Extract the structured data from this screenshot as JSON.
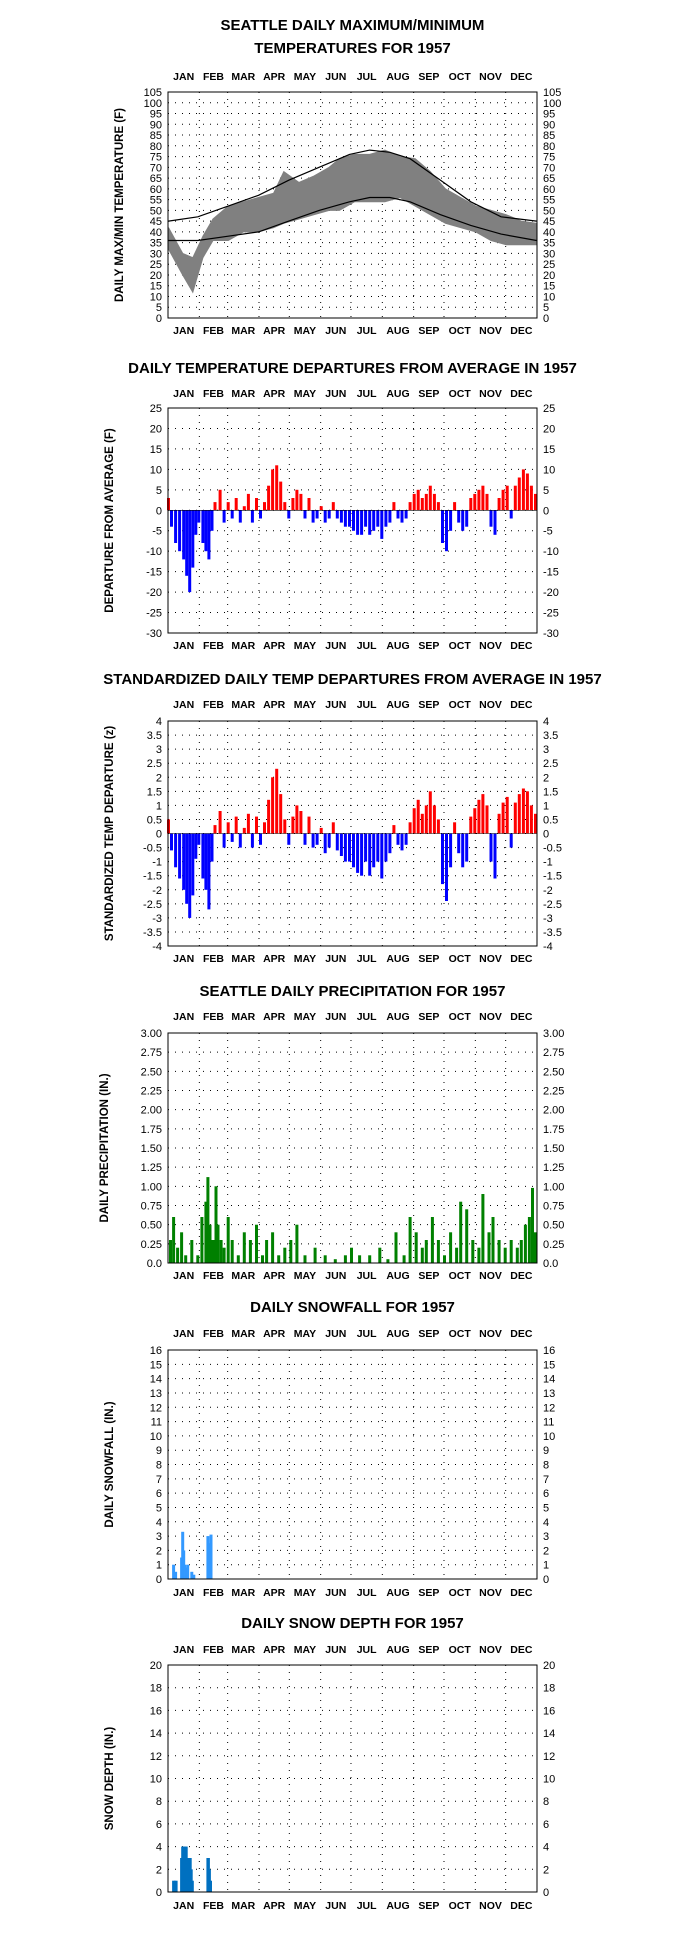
{
  "months": [
    "JAN",
    "FEB",
    "MAR",
    "APR",
    "MAY",
    "JUN",
    "JUL",
    "AUG",
    "SEP",
    "OCT",
    "NOV",
    "DEC"
  ],
  "chart_data": [
    {
      "type": "line",
      "title": [
        "SEATTLE DAILY MAXIMUM/MINIMUM",
        "TEMPERATURES FOR 1957"
      ],
      "ylabel": "DAILY MAX/MIN TEMPERATURE (F)",
      "ylim": [
        0,
        105
      ],
      "yticks": [
        0,
        5,
        10,
        15,
        20,
        25,
        30,
        35,
        40,
        45,
        50,
        55,
        60,
        65,
        70,
        75,
        80,
        85,
        90,
        95,
        100,
        105
      ],
      "series": [
        {
          "name": "",
          "kind": "daily range band (gray)",
          "color": "#808080",
          "x_day": [
            1,
            15,
            25,
            35,
            45,
            60,
            75,
            90,
            105,
            115,
            130,
            145,
            160,
            170,
            185,
            200,
            215,
            230,
            245,
            260,
            275,
            290,
            305,
            320,
            335,
            350,
            365
          ],
          "y_max": [
            42,
            30,
            28,
            38,
            46,
            52,
            54,
            56,
            58,
            68,
            63,
            66,
            70,
            74,
            76,
            76,
            78,
            75,
            74,
            68,
            60,
            56,
            52,
            50,
            48,
            45,
            44
          ],
          "y_min": [
            32,
            20,
            12,
            28,
            36,
            36,
            40,
            40,
            42,
            44,
            46,
            48,
            50,
            50,
            54,
            54,
            54,
            56,
            52,
            48,
            44,
            42,
            40,
            36,
            34,
            34,
            34
          ]
        },
        {
          "name": "",
          "kind": "normal max",
          "color": "#000000",
          "x_day": [
            1,
            30,
            60,
            90,
            120,
            150,
            180,
            200,
            220,
            240,
            270,
            300,
            330,
            365
          ],
          "y": [
            45,
            47,
            52,
            57,
            64,
            70,
            76,
            78,
            77,
            74,
            64,
            54,
            47,
            45
          ]
        },
        {
          "name": "",
          "kind": "normal min",
          "color": "#000000",
          "x_day": [
            1,
            30,
            60,
            90,
            120,
            150,
            180,
            200,
            220,
            240,
            270,
            300,
            330,
            365
          ],
          "y": [
            36,
            36,
            38,
            40,
            45,
            50,
            54,
            56,
            56,
            54,
            48,
            43,
            39,
            36
          ]
        }
      ]
    },
    {
      "type": "bar",
      "title": [
        "DAILY TEMPERATURE DEPARTURES FROM AVERAGE IN 1957"
      ],
      "ylabel": "DEPARTURE FROM AVERAGE (F)",
      "ylim": [
        -30,
        25
      ],
      "yticks": [
        25,
        20,
        15,
        10,
        5,
        0,
        -5,
        -10,
        -15,
        -20,
        -25,
        -30
      ],
      "x_day": [
        1,
        4,
        8,
        12,
        16,
        19,
        22,
        25,
        28,
        31,
        35,
        38,
        41,
        44,
        47,
        52,
        56,
        60,
        64,
        68,
        72,
        76,
        80,
        84,
        88,
        92,
        96,
        100,
        104,
        108,
        112,
        116,
        120,
        124,
        128,
        132,
        136,
        140,
        144,
        148,
        152,
        156,
        160,
        164,
        168,
        172,
        176,
        180,
        184,
        188,
        192,
        196,
        200,
        204,
        208,
        212,
        216,
        220,
        224,
        228,
        232,
        236,
        240,
        244,
        248,
        252,
        256,
        260,
        264,
        268,
        272,
        276,
        280,
        284,
        288,
        292,
        296,
        300,
        304,
        308,
        312,
        316,
        320,
        324,
        328,
        332,
        336,
        340,
        344,
        348,
        352,
        356,
        360,
        364
      ],
      "values": [
        3,
        -4,
        -8,
        -10,
        -12,
        -16,
        -20,
        -14,
        -6,
        -3,
        -8,
        -10,
        -12,
        -5,
        2,
        5,
        -3,
        2,
        -2,
        3,
        -3,
        1,
        4,
        -3,
        3,
        -2,
        2,
        6,
        10,
        11,
        7,
        2,
        -2,
        3,
        5,
        4,
        -2,
        3,
        -3,
        -2,
        1,
        -3,
        -2,
        2,
        -2,
        -3,
        -4,
        -4,
        -5,
        -6,
        -6,
        -4,
        -6,
        -5,
        -4,
        -7,
        -4,
        -3,
        2,
        -2,
        -3,
        -2,
        2,
        4,
        5,
        3,
        4,
        6,
        4,
        2,
        -8,
        -10,
        -5,
        2,
        -3,
        -5,
        -4,
        3,
        4,
        5,
        6,
        4,
        -4,
        -6,
        3,
        5,
        6,
        -2,
        6,
        8,
        10,
        9,
        6,
        4
      ]
    },
    {
      "type": "bar",
      "title": [
        "STANDARDIZED DAILY TEMP DEPARTURES FROM AVERAGE IN 1957"
      ],
      "ylabel": "STANDARDIZED TEMP DEPARTURE (z)",
      "ylim": [
        -4.0,
        4.0
      ],
      "yticks": [
        4.0,
        3.5,
        3.0,
        2.5,
        2.0,
        1.5,
        1.0,
        0.5,
        0.0,
        -0.5,
        -1.0,
        -1.5,
        -2.0,
        -2.5,
        -3.0,
        -3.5,
        -4.0
      ],
      "x_day": [
        1,
        4,
        8,
        12,
        16,
        19,
        22,
        25,
        28,
        31,
        35,
        38,
        41,
        44,
        47,
        52,
        56,
        60,
        64,
        68,
        72,
        76,
        80,
        84,
        88,
        92,
        96,
        100,
        104,
        108,
        112,
        116,
        120,
        124,
        128,
        132,
        136,
        140,
        144,
        148,
        152,
        156,
        160,
        164,
        168,
        172,
        176,
        180,
        184,
        188,
        192,
        196,
        200,
        204,
        208,
        212,
        216,
        220,
        224,
        228,
        232,
        236,
        240,
        244,
        248,
        252,
        256,
        260,
        264,
        268,
        272,
        276,
        280,
        284,
        288,
        292,
        296,
        300,
        304,
        308,
        312,
        316,
        320,
        324,
        328,
        332,
        336,
        340,
        344,
        348,
        352,
        356,
        360,
        364
      ],
      "values": [
        0.5,
        -0.6,
        -1.2,
        -1.6,
        -2.0,
        -2.5,
        -3.0,
        -2.2,
        -0.9,
        -0.4,
        -1.6,
        -2.0,
        -2.7,
        -1.0,
        0.3,
        0.8,
        -0.5,
        0.4,
        -0.3,
        0.6,
        -0.5,
        0.2,
        0.7,
        -0.5,
        0.6,
        -0.4,
        0.4,
        1.2,
        2.0,
        2.3,
        1.4,
        0.5,
        -0.4,
        0.6,
        1.0,
        0.8,
        -0.4,
        0.6,
        -0.5,
        -0.4,
        0.2,
        -0.7,
        -0.5,
        0.4,
        -0.6,
        -0.8,
        -1.0,
        -1.0,
        -1.2,
        -1.4,
        -1.5,
        -1.0,
        -1.5,
        -1.2,
        -1.0,
        -1.6,
        -1.0,
        -0.7,
        0.3,
        -0.4,
        -0.6,
        -0.4,
        0.4,
        0.9,
        1.2,
        0.7,
        1.0,
        1.5,
        1.0,
        0.5,
        -1.8,
        -2.4,
        -1.2,
        0.4,
        -0.7,
        -1.2,
        -1.0,
        0.6,
        0.9,
        1.2,
        1.4,
        1.0,
        -1.0,
        -1.6,
        0.7,
        1.1,
        1.3,
        -0.5,
        1.1,
        1.4,
        1.6,
        1.5,
        1.0,
        0.7
      ]
    },
    {
      "type": "bar",
      "title": [
        "SEATTLE DAILY PRECIPITATION FOR 1957"
      ],
      "ylabel": "DAILY PRECIPITATION (IN.)",
      "ylim": [
        0.0,
        3.0
      ],
      "yticks": [
        "3.00",
        "2.75",
        "2.50",
        "2.25",
        "2.00",
        "1.75",
        "1.50",
        "1.25",
        "1.00",
        "0.75",
        "0.50",
        "0.25",
        "0.0"
      ],
      "x_day": [
        3,
        6,
        10,
        14,
        18,
        24,
        30,
        34,
        38,
        40,
        42,
        45,
        48,
        50,
        53,
        56,
        60,
        64,
        70,
        76,
        82,
        88,
        94,
        98,
        104,
        110,
        116,
        122,
        128,
        136,
        146,
        156,
        166,
        176,
        182,
        190,
        200,
        210,
        218,
        226,
        234,
        240,
        246,
        252,
        256,
        262,
        268,
        274,
        280,
        286,
        290,
        296,
        302,
        308,
        312,
        318,
        322,
        328,
        334,
        340,
        346,
        350,
        354,
        358,
        361,
        364
      ],
      "values": [
        0.3,
        0.6,
        0.2,
        0.4,
        0.1,
        0.3,
        0.1,
        0.6,
        0.8,
        1.12,
        0.5,
        0.3,
        1.0,
        0.5,
        0.3,
        0.2,
        0.6,
        0.3,
        0.1,
        0.4,
        0.3,
        0.5,
        0.1,
        0.3,
        0.4,
        0.1,
        0.2,
        0.3,
        0.5,
        0.1,
        0.2,
        0.1,
        0.05,
        0.1,
        0.2,
        0.1,
        0.1,
        0.2,
        0.05,
        0.4,
        0.1,
        0.6,
        0.4,
        0.2,
        0.3,
        0.6,
        0.3,
        0.1,
        0.4,
        0.2,
        0.8,
        0.7,
        0.3,
        0.2,
        0.9,
        0.4,
        0.6,
        0.3,
        0.2,
        0.3,
        0.2,
        0.3,
        0.5,
        0.6,
        0.98,
        0.4
      ]
    },
    {
      "type": "bar",
      "title": [
        "DAILY SNOWFALL FOR 1957"
      ],
      "ylabel": "DAILY SNOWFALL (IN.)",
      "ylim": [
        0,
        16
      ],
      "yticks": [
        16,
        15,
        14,
        13,
        12,
        11,
        10,
        9,
        8,
        7,
        6,
        5,
        4,
        3,
        2,
        1,
        0
      ],
      "x_day": [
        6,
        8,
        14,
        15,
        16,
        17,
        19,
        20,
        24,
        26,
        40,
        41,
        43
      ],
      "values": [
        1.0,
        0.5,
        1.5,
        3.3,
        2.0,
        1.0,
        0.8,
        1.0,
        0.5,
        0.3,
        3.0,
        2.5,
        3.1
      ]
    },
    {
      "type": "bar",
      "title": [
        "DAILY SNOW DEPTH FOR 1957"
      ],
      "ylabel": "SNOW DEPTH (IN.)",
      "ylim": [
        0,
        20
      ],
      "yticks": [
        20,
        18,
        16,
        14,
        12,
        10,
        8,
        6,
        4,
        2,
        0
      ],
      "x_day": [
        6,
        8,
        14,
        15,
        16,
        17,
        18,
        19,
        20,
        21,
        22,
        23,
        24,
        40,
        41,
        42
      ],
      "values": [
        1,
        1,
        3,
        4,
        4,
        4,
        4,
        3,
        3,
        3,
        3,
        2,
        1,
        3,
        2,
        1
      ]
    }
  ]
}
